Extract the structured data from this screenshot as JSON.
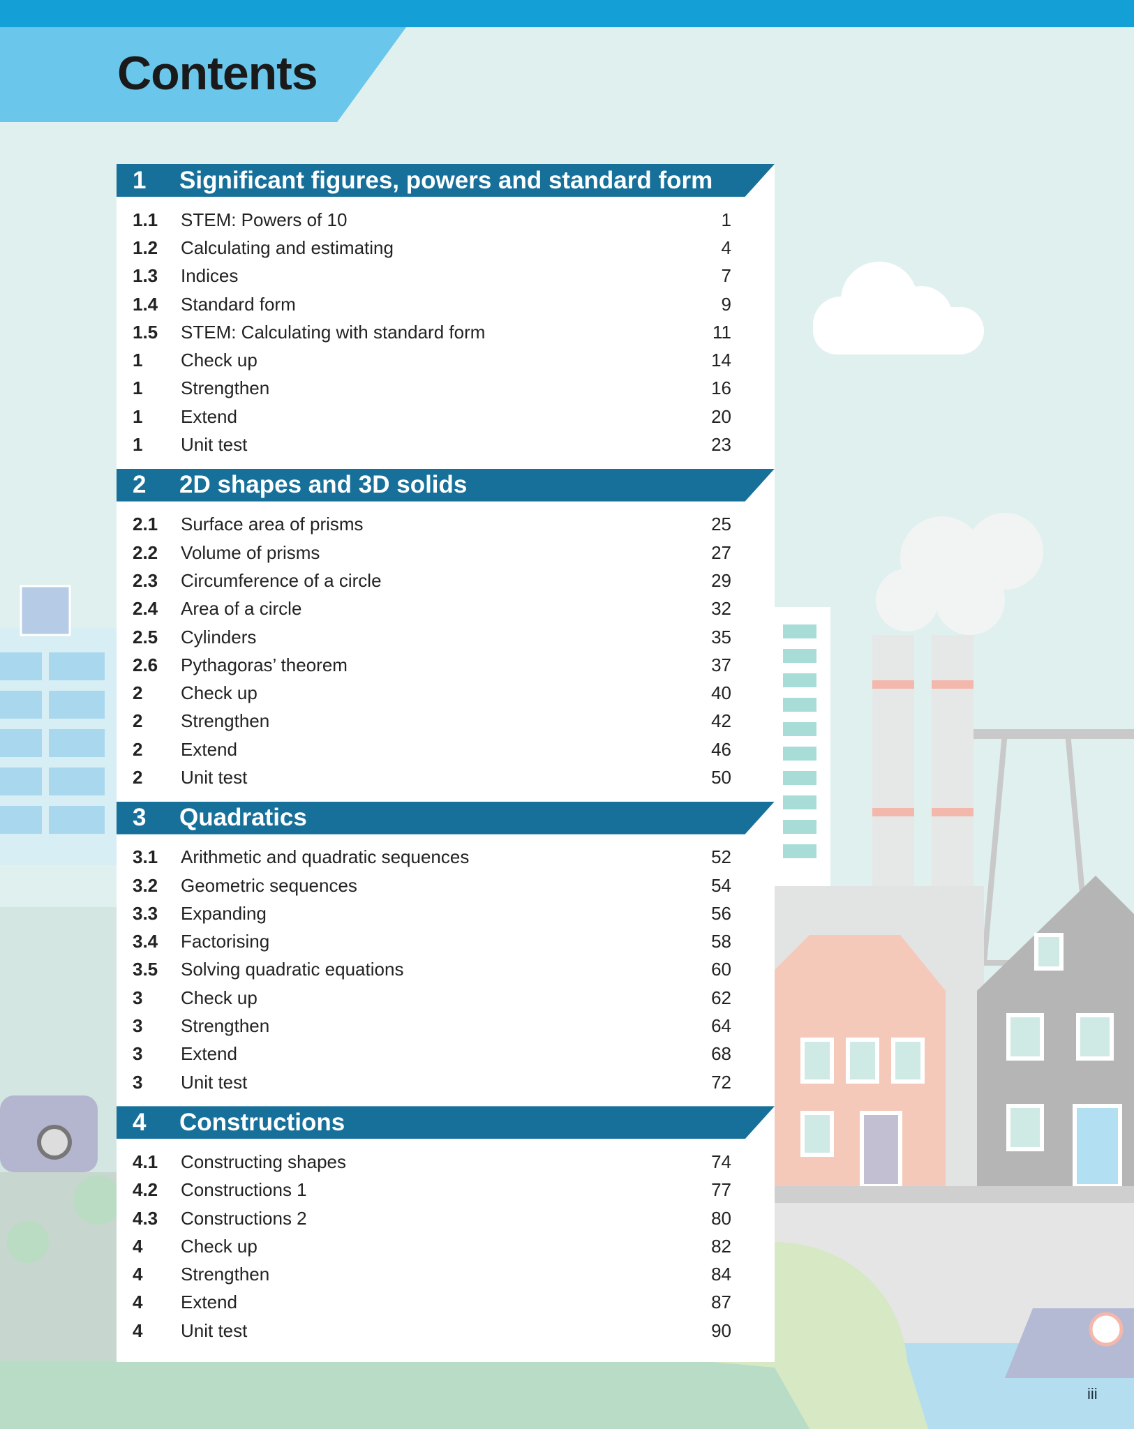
{
  "page": {
    "title": "Contents",
    "folio": "iii"
  },
  "colors": {
    "top_bar": "#149fd6",
    "banner": "#6ac6ea",
    "section_header": "#17709a",
    "background": "#dff0ef"
  },
  "sections": [
    {
      "number": "1",
      "title": "Significant figures, powers and standard form",
      "items": [
        {
          "num": "1.1",
          "title": "STEM: Powers of 10",
          "page": "1"
        },
        {
          "num": "1.2",
          "title": "Calculating and estimating",
          "page": "4"
        },
        {
          "num": "1.3",
          "title": "Indices",
          "page": "7"
        },
        {
          "num": "1.4",
          "title": "Standard form",
          "page": "9"
        },
        {
          "num": "1.5",
          "title": "STEM: Calculating with standard form",
          "page": "11"
        },
        {
          "num": "1",
          "title": "Check up",
          "page": "14"
        },
        {
          "num": "1",
          "title": "Strengthen",
          "page": "16"
        },
        {
          "num": "1",
          "title": "Extend",
          "page": "20"
        },
        {
          "num": "1",
          "title": "Unit test",
          "page": "23"
        }
      ]
    },
    {
      "number": "2",
      "title": "2D shapes and 3D solids",
      "items": [
        {
          "num": "2.1",
          "title": "Surface area of prisms",
          "page": "25"
        },
        {
          "num": "2.2",
          "title": "Volume of prisms",
          "page": "27"
        },
        {
          "num": "2.3",
          "title": "Circumference of a circle",
          "page": "29"
        },
        {
          "num": "2.4",
          "title": "Area of a circle",
          "page": "32"
        },
        {
          "num": "2.5",
          "title": "Cylinders",
          "page": "35"
        },
        {
          "num": "2.6",
          "title": "Pythagoras’ theorem",
          "page": "37"
        },
        {
          "num": "2",
          "title": "Check up",
          "page": "40"
        },
        {
          "num": "2",
          "title": "Strengthen",
          "page": "42"
        },
        {
          "num": "2",
          "title": "Extend",
          "page": "46"
        },
        {
          "num": "2",
          "title": "Unit test",
          "page": "50"
        }
      ]
    },
    {
      "number": "3",
      "title": "Quadratics",
      "items": [
        {
          "num": "3.1",
          "title": "Arithmetic and quadratic sequences",
          "page": "52"
        },
        {
          "num": "3.2",
          "title": "Geometric sequences",
          "page": "54"
        },
        {
          "num": "3.3",
          "title": "Expanding",
          "page": "56"
        },
        {
          "num": "3.4",
          "title": "Factorising",
          "page": "58"
        },
        {
          "num": "3.5",
          "title": "Solving quadratic equations",
          "page": "60"
        },
        {
          "num": "3",
          "title": "Check up",
          "page": "62"
        },
        {
          "num": "3",
          "title": "Strengthen",
          "page": "64"
        },
        {
          "num": "3",
          "title": "Extend",
          "page": "68"
        },
        {
          "num": "3",
          "title": "Unit test",
          "page": "72"
        }
      ]
    },
    {
      "number": "4",
      "title": "Constructions",
      "items": [
        {
          "num": "4.1",
          "title": "Constructing shapes",
          "page": "74"
        },
        {
          "num": "4.2",
          "title": "Constructions 1",
          "page": "77"
        },
        {
          "num": "4.3",
          "title": "Constructions 2",
          "page": "80"
        },
        {
          "num": "4",
          "title": "Check up",
          "page": "82"
        },
        {
          "num": "4",
          "title": "Strengthen",
          "page": "84"
        },
        {
          "num": "4",
          "title": "Extend",
          "page": "87"
        },
        {
          "num": "4",
          "title": "Unit test",
          "page": "90"
        }
      ]
    }
  ]
}
